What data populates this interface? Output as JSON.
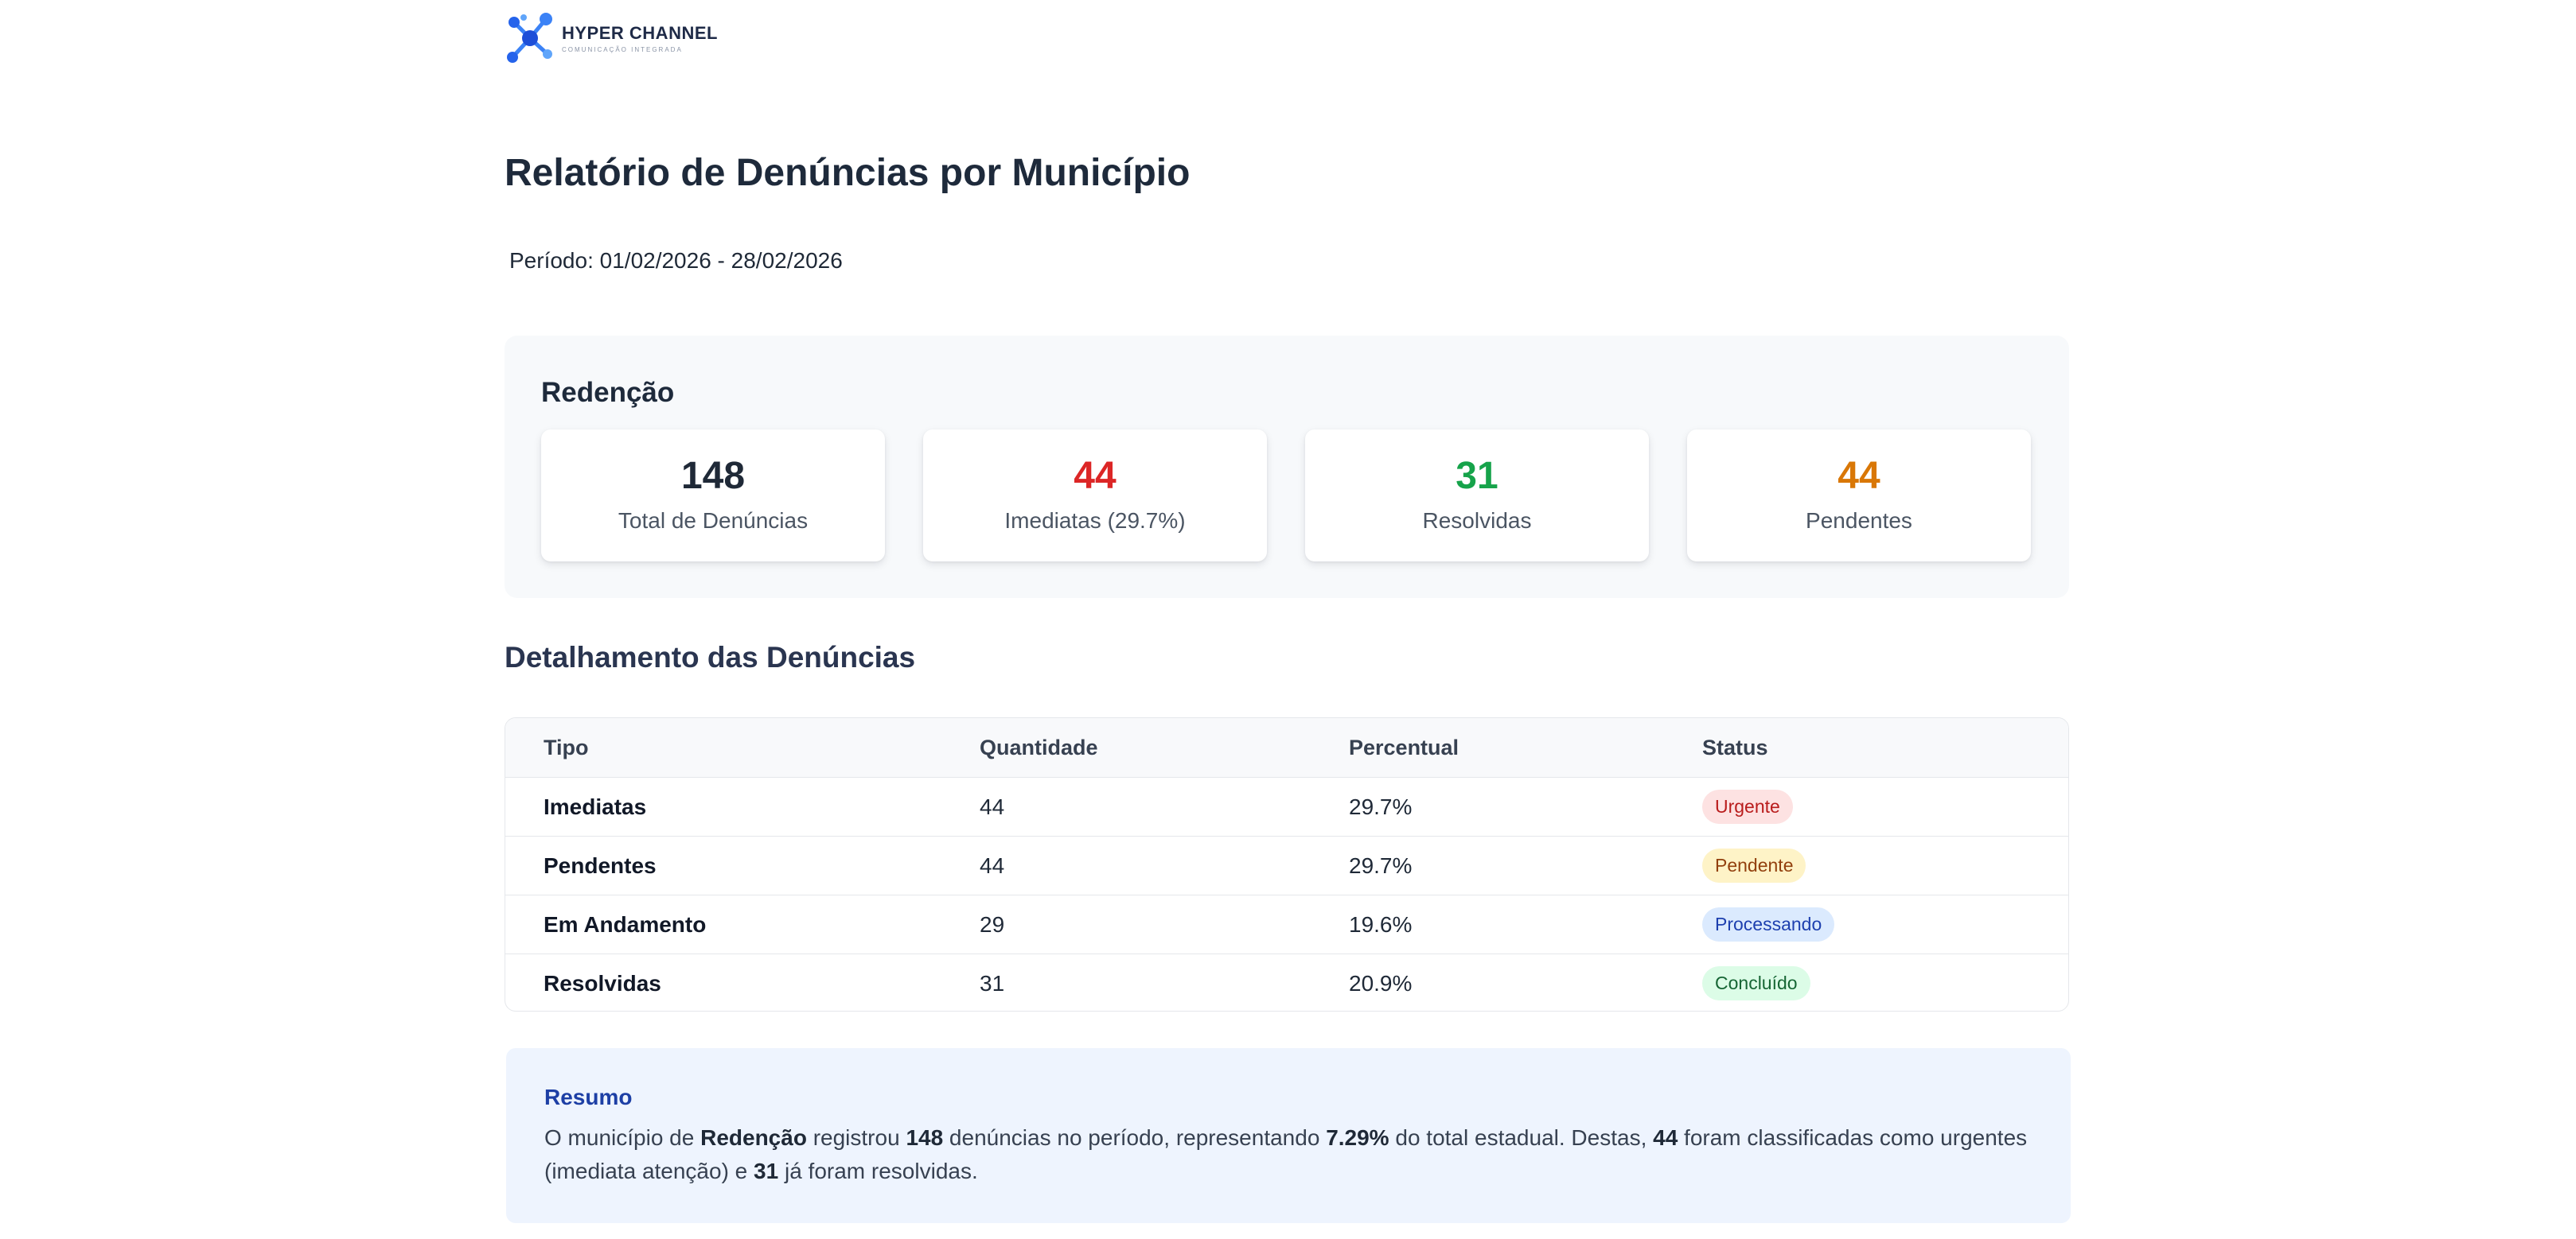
{
  "logo": {
    "name": "HYPER CHANNEL",
    "subtitle": "COMUNICAÇÃO INTEGRADA"
  },
  "report": {
    "title": "Relatório de Denúncias por Município",
    "period_label": "Período:",
    "period_value": "01/02/2026 - 28/02/2026"
  },
  "municipality": {
    "name": "Redenção",
    "stats": [
      {
        "value": "148",
        "label": "Total de Denúncias",
        "color": "#1f2937"
      },
      {
        "value": "44",
        "label": "Imediatas (29.7%)",
        "color": "#dc2626"
      },
      {
        "value": "31",
        "label": "Resolvidas",
        "color": "#16a34a"
      },
      {
        "value": "44",
        "label": "Pendentes",
        "color": "#d97706"
      }
    ]
  },
  "details": {
    "title": "Detalhamento das Denúncias",
    "headers": {
      "type": "Tipo",
      "quantity": "Quantidade",
      "percent": "Percentual",
      "status": "Status"
    },
    "rows": [
      {
        "type": "Imediatas",
        "quantity": "44",
        "percent": "29.7%",
        "status": "Urgente",
        "badge_bg": "#fde2e2",
        "badge_fg": "#b91c1c"
      },
      {
        "type": "Pendentes",
        "quantity": "44",
        "percent": "29.7%",
        "status": "Pendente",
        "badge_bg": "#fef3c7",
        "badge_fg": "#92400e"
      },
      {
        "type": "Em Andamento",
        "quantity": "29",
        "percent": "19.6%",
        "status": "Processando",
        "badge_bg": "#dbeafe",
        "badge_fg": "#1e40af"
      },
      {
        "type": "Resolvidas",
        "quantity": "31",
        "percent": "20.9%",
        "status": "Concluído",
        "badge_bg": "#dcfce7",
        "badge_fg": "#166534"
      }
    ]
  },
  "summary": {
    "title": "Resumo",
    "t1": "O município de ",
    "municipality": "Redenção",
    "t2": " registrou ",
    "total": "148",
    "t3": " denúncias no período, representando ",
    "share": "7.29%",
    "t4": " do total estadual. Destas, ",
    "urgent": "44",
    "t5": " foram classificadas como urgentes (imediata atenção) e ",
    "resolved": "31",
    "t6": " já foram resolvidas."
  }
}
